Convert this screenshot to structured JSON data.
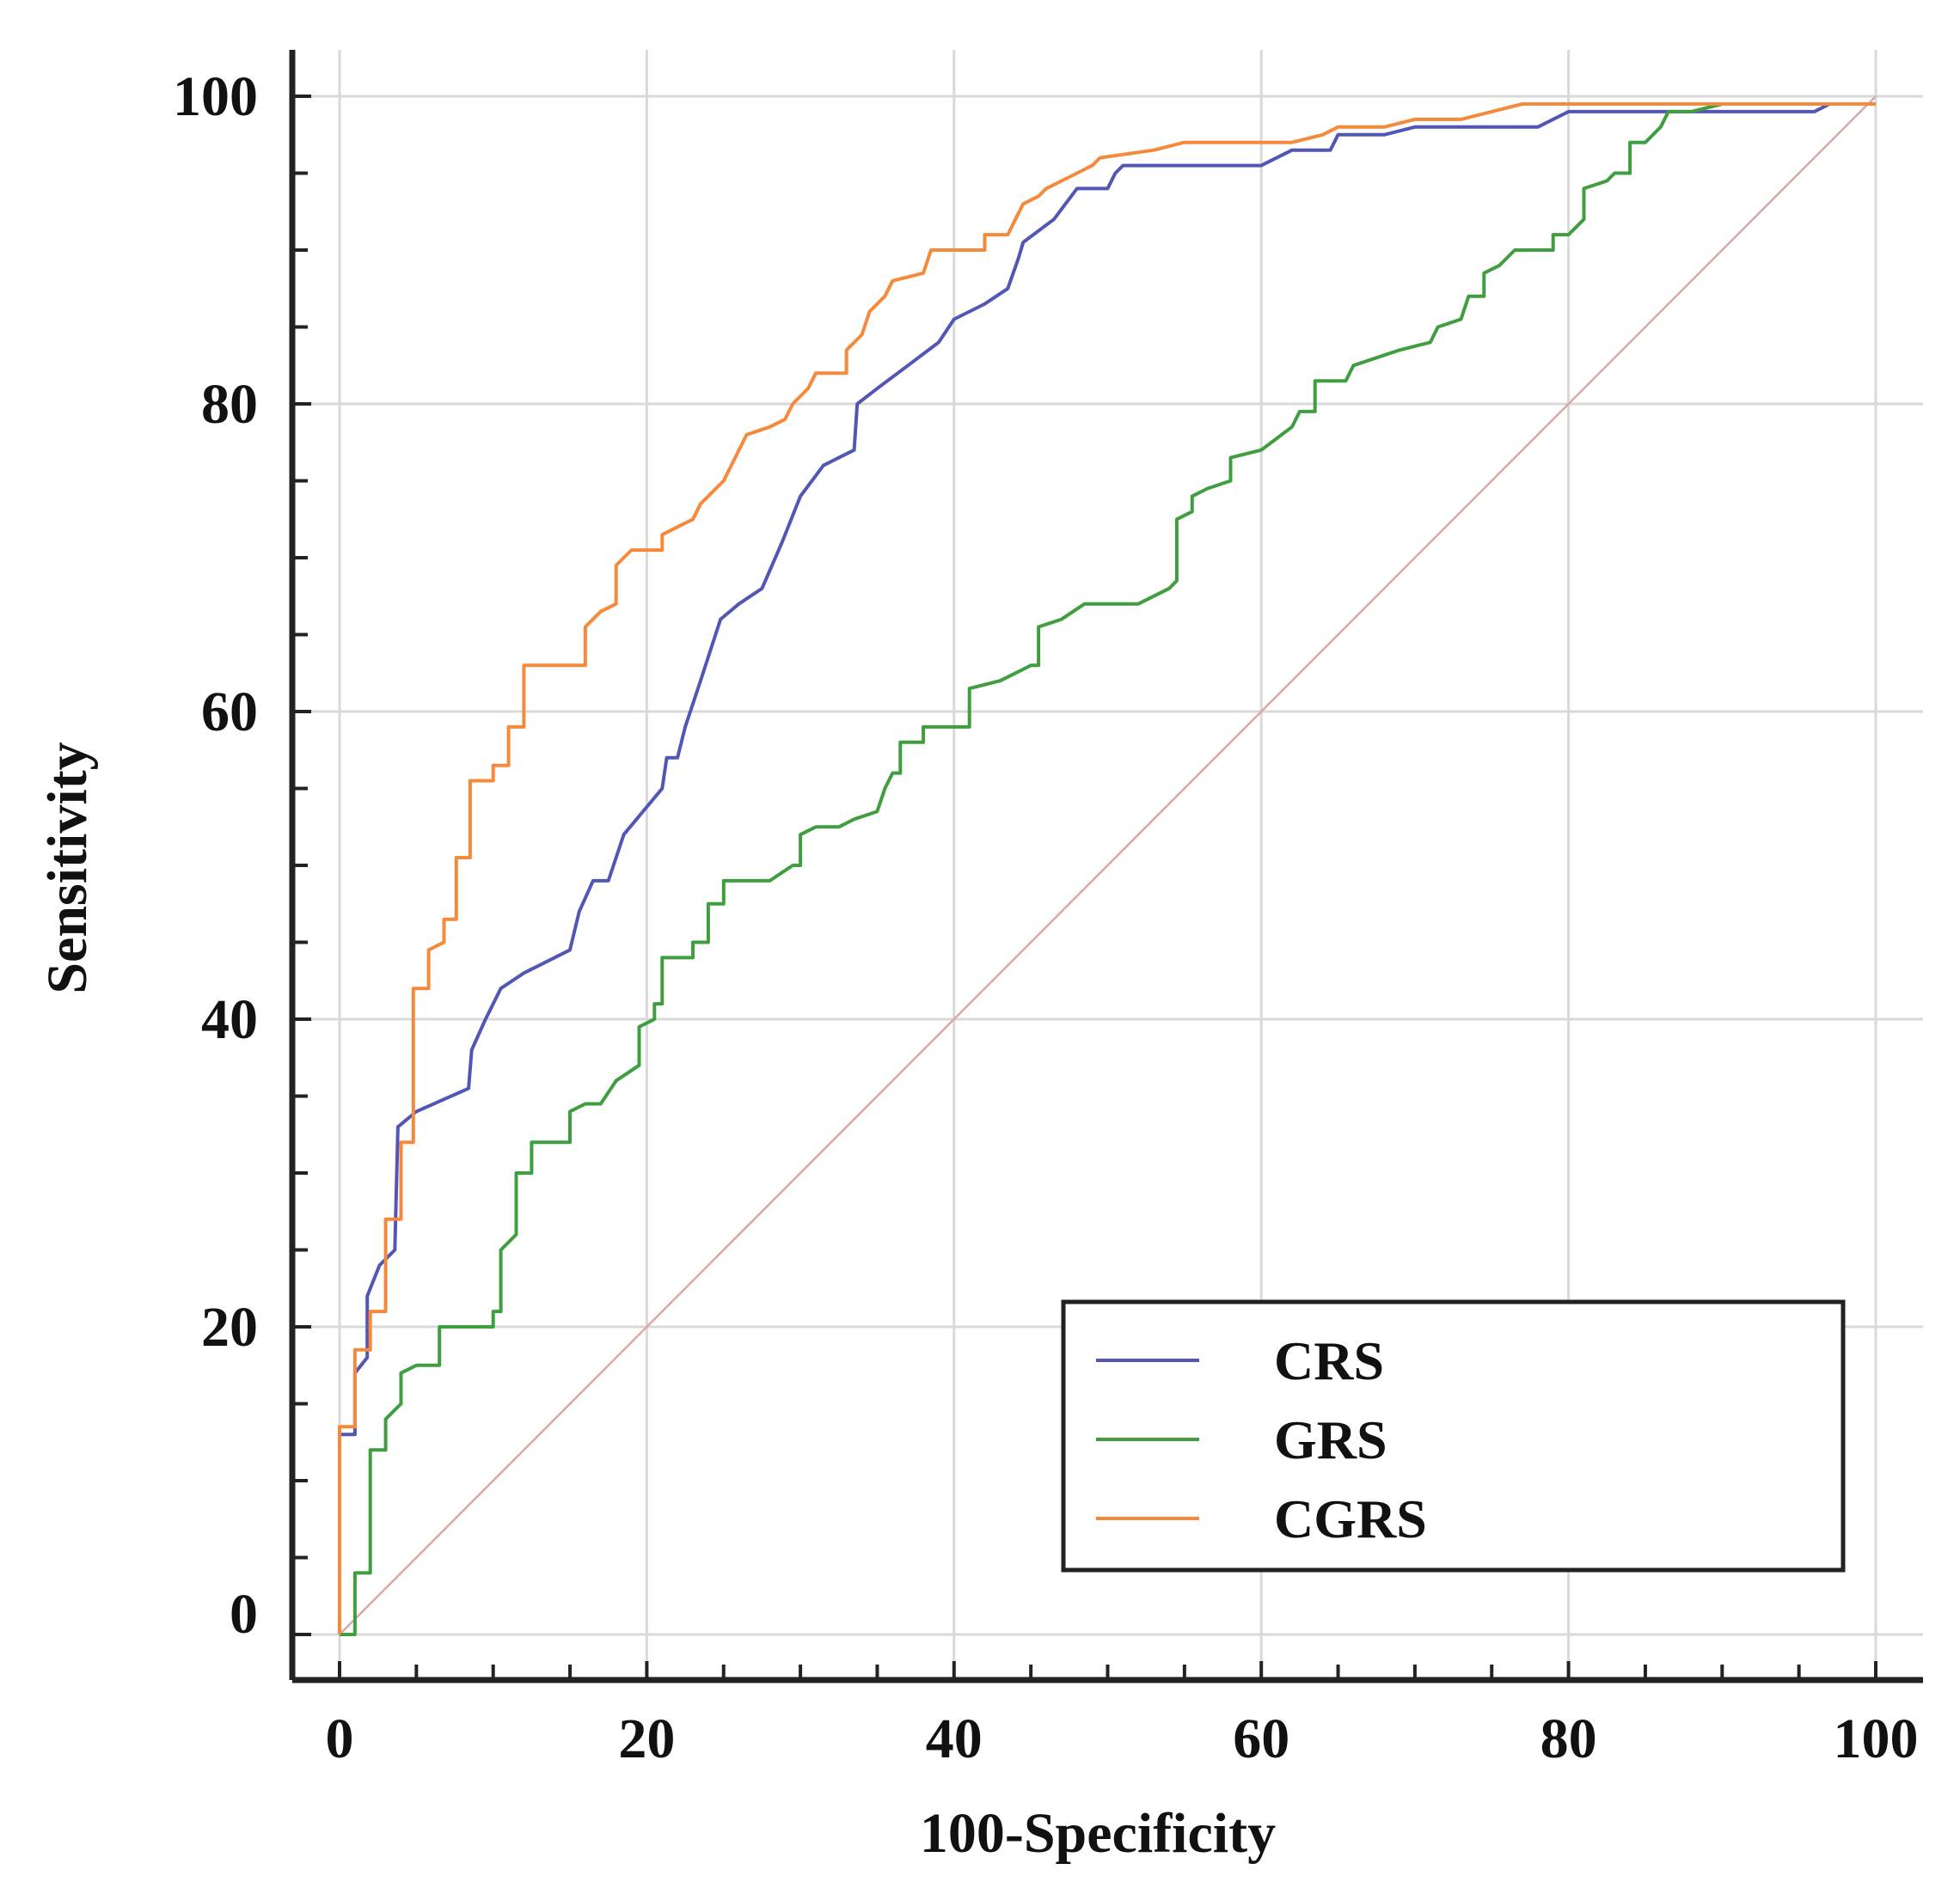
{
  "chart_data": {
    "type": "line",
    "xlabel": "100-Specificity",
    "ylabel": "Sensitivity",
    "xlim": [
      0,
      100
    ],
    "ylim": [
      0,
      100
    ],
    "x_ticks": [
      "0",
      "20",
      "40",
      "60",
      "80",
      "100"
    ],
    "y_ticks": [
      "0",
      "20",
      "40",
      "60",
      "80",
      "100"
    ],
    "grid": true,
    "legend_position": "bottom-right",
    "colors": {
      "CRS": "#5257b5",
      "GRS": "#3f9e3f",
      "CGRS": "#f58a3c",
      "reference": "#d9a8a8",
      "grid": "#d9d9d9",
      "axis": "#222222"
    },
    "reference_line": [
      [
        0,
        0
      ],
      [
        100,
        100
      ]
    ],
    "series": [
      {
        "name": "CRS",
        "points": [
          [
            0,
            0
          ],
          [
            0,
            13
          ],
          [
            1,
            13
          ],
          [
            1,
            17
          ],
          [
            1.8,
            18
          ],
          [
            1.8,
            22
          ],
          [
            2.6,
            24
          ],
          [
            3.6,
            25
          ],
          [
            3.8,
            33
          ],
          [
            5,
            34
          ],
          [
            8.4,
            35.5
          ],
          [
            8.6,
            38
          ],
          [
            9.5,
            40
          ],
          [
            10.5,
            42
          ],
          [
            12,
            43
          ],
          [
            15,
            44.5
          ],
          [
            15.6,
            47
          ],
          [
            16.5,
            49
          ],
          [
            17.5,
            49
          ],
          [
            18.5,
            52
          ],
          [
            21,
            55
          ],
          [
            21.3,
            57
          ],
          [
            22,
            57
          ],
          [
            22.5,
            59
          ],
          [
            23.5,
            62
          ],
          [
            24.8,
            66
          ],
          [
            26,
            67
          ],
          [
            27.5,
            68
          ],
          [
            28.8,
            71
          ],
          [
            30,
            74
          ],
          [
            31.5,
            76
          ],
          [
            33.5,
            77
          ],
          [
            33.7,
            80
          ],
          [
            35,
            81
          ],
          [
            37,
            82.5
          ],
          [
            39,
            84
          ],
          [
            40,
            85.5
          ],
          [
            42,
            86.5
          ],
          [
            43.5,
            87.5
          ],
          [
            44.2,
            89.5
          ],
          [
            44.5,
            90.5
          ],
          [
            46.5,
            92
          ],
          [
            48,
            94
          ],
          [
            50,
            94
          ],
          [
            50.5,
            95
          ],
          [
            51,
            95.5
          ],
          [
            58,
            95.5
          ],
          [
            60,
            95.5
          ],
          [
            62,
            96.5
          ],
          [
            64.5,
            96.5
          ],
          [
            65,
            97.5
          ],
          [
            68,
            97.5
          ],
          [
            70,
            98
          ],
          [
            78,
            98
          ],
          [
            80,
            99
          ],
          [
            84,
            99
          ],
          [
            96,
            99
          ],
          [
            97,
            99.5
          ],
          [
            100,
            99.5
          ]
        ]
      },
      {
        "name": "GRS",
        "points": [
          [
            0,
            0
          ],
          [
            1,
            0
          ],
          [
            1,
            4
          ],
          [
            2,
            4
          ],
          [
            2,
            12
          ],
          [
            3,
            12
          ],
          [
            3,
            14
          ],
          [
            4,
            15
          ],
          [
            4,
            17
          ],
          [
            5,
            17.5
          ],
          [
            6.5,
            17.5
          ],
          [
            6.5,
            20
          ],
          [
            10,
            20
          ],
          [
            10,
            21
          ],
          [
            10.5,
            21
          ],
          [
            10.5,
            25
          ],
          [
            11.5,
            26
          ],
          [
            11.5,
            30
          ],
          [
            12.5,
            30
          ],
          [
            12.5,
            32
          ],
          [
            15,
            32
          ],
          [
            15,
            34
          ],
          [
            16,
            34.5
          ],
          [
            17,
            34.5
          ],
          [
            18,
            36
          ],
          [
            19.5,
            37
          ],
          [
            19.5,
            39.5
          ],
          [
            20.5,
            40
          ],
          [
            20.5,
            41
          ],
          [
            21,
            41
          ],
          [
            21,
            44
          ],
          [
            23,
            44
          ],
          [
            23,
            45
          ],
          [
            24,
            45
          ],
          [
            24,
            47.5
          ],
          [
            25,
            47.5
          ],
          [
            25,
            49
          ],
          [
            28,
            49
          ],
          [
            29.5,
            50
          ],
          [
            30,
            50
          ],
          [
            30,
            52
          ],
          [
            31,
            52.5
          ],
          [
            32.5,
            52.5
          ],
          [
            33.5,
            53
          ],
          [
            35,
            53.5
          ],
          [
            35.5,
            55
          ],
          [
            36,
            56
          ],
          [
            36.5,
            56
          ],
          [
            36.5,
            58
          ],
          [
            38,
            58
          ],
          [
            38,
            59
          ],
          [
            41,
            59
          ],
          [
            41,
            61.5
          ],
          [
            43,
            62
          ],
          [
            44,
            62.5
          ],
          [
            45,
            63
          ],
          [
            45.5,
            63
          ],
          [
            45.5,
            65.5
          ],
          [
            47,
            66
          ],
          [
            48.5,
            67
          ],
          [
            52,
            67
          ],
          [
            54,
            68
          ],
          [
            54.5,
            68.5
          ],
          [
            54.5,
            72.5
          ],
          [
            55.5,
            73
          ],
          [
            55.5,
            74
          ],
          [
            56.5,
            74.5
          ],
          [
            58,
            75
          ],
          [
            58,
            76.5
          ],
          [
            60,
            77
          ],
          [
            62,
            78.5
          ],
          [
            62.5,
            79.5
          ],
          [
            63.5,
            79.5
          ],
          [
            63.5,
            81.5
          ],
          [
            65.5,
            81.5
          ],
          [
            66,
            82.5
          ],
          [
            69,
            83.5
          ],
          [
            71,
            84
          ],
          [
            71.5,
            85
          ],
          [
            73,
            85.5
          ],
          [
            73.5,
            87
          ],
          [
            74.5,
            87
          ],
          [
            74.5,
            88.5
          ],
          [
            75.5,
            89
          ],
          [
            76.5,
            90
          ],
          [
            79,
            90
          ],
          [
            79,
            91
          ],
          [
            80,
            91
          ],
          [
            81,
            92
          ],
          [
            81,
            94
          ],
          [
            82.5,
            94.5
          ],
          [
            83,
            95
          ],
          [
            84,
            95
          ],
          [
            84,
            97
          ],
          [
            85,
            97
          ],
          [
            86,
            98
          ],
          [
            86.5,
            99
          ],
          [
            88,
            99
          ],
          [
            90,
            99.5
          ],
          [
            100,
            99.5
          ]
        ]
      },
      {
        "name": "CGRS",
        "points": [
          [
            0,
            0
          ],
          [
            0,
            13.5
          ],
          [
            1,
            13.5
          ],
          [
            1,
            18.5
          ],
          [
            2,
            18.5
          ],
          [
            2,
            21
          ],
          [
            3,
            21
          ],
          [
            3,
            27
          ],
          [
            4,
            27
          ],
          [
            4,
            32
          ],
          [
            4.8,
            32
          ],
          [
            4.8,
            42
          ],
          [
            5.8,
            42
          ],
          [
            5.8,
            44.5
          ],
          [
            6.8,
            45
          ],
          [
            6.8,
            46.5
          ],
          [
            7.6,
            46.5
          ],
          [
            7.6,
            50.5
          ],
          [
            8.5,
            50.5
          ],
          [
            8.5,
            55.5
          ],
          [
            10,
            55.5
          ],
          [
            10,
            56.5
          ],
          [
            11,
            56.5
          ],
          [
            11,
            59
          ],
          [
            12,
            59
          ],
          [
            12,
            63
          ],
          [
            16,
            63
          ],
          [
            16,
            65.5
          ],
          [
            17,
            66.5
          ],
          [
            18,
            67
          ],
          [
            18,
            69.5
          ],
          [
            19,
            70.5
          ],
          [
            21,
            70.5
          ],
          [
            21,
            71.5
          ],
          [
            22,
            72
          ],
          [
            23,
            72.5
          ],
          [
            23.5,
            73.5
          ],
          [
            24,
            74
          ],
          [
            25,
            75
          ],
          [
            25.5,
            76
          ],
          [
            26,
            77
          ],
          [
            26.5,
            78
          ],
          [
            28,
            78.5
          ],
          [
            29,
            79
          ],
          [
            29.5,
            80
          ],
          [
            30,
            80.5
          ],
          [
            30.5,
            81
          ],
          [
            31,
            82
          ],
          [
            33,
            82
          ],
          [
            33,
            83.5
          ],
          [
            34,
            84.5
          ],
          [
            34.5,
            86
          ],
          [
            35.5,
            87
          ],
          [
            36,
            88
          ],
          [
            38,
            88.5
          ],
          [
            38.5,
            90
          ],
          [
            42,
            90
          ],
          [
            42,
            91
          ],
          [
            43.5,
            91
          ],
          [
            44,
            92
          ],
          [
            44.5,
            93
          ],
          [
            45.5,
            93.5
          ],
          [
            46,
            94
          ],
          [
            47,
            94.5
          ],
          [
            48,
            95
          ],
          [
            49,
            95.5
          ],
          [
            49.5,
            96
          ],
          [
            53,
            96.5
          ],
          [
            55,
            97
          ],
          [
            58,
            97
          ],
          [
            62,
            97
          ],
          [
            64,
            97.5
          ],
          [
            65,
            98
          ],
          [
            68,
            98
          ],
          [
            70,
            98.5
          ],
          [
            73,
            98.5
          ],
          [
            75,
            99
          ],
          [
            77,
            99.5
          ],
          [
            100,
            99.5
          ]
        ]
      }
    ]
  }
}
